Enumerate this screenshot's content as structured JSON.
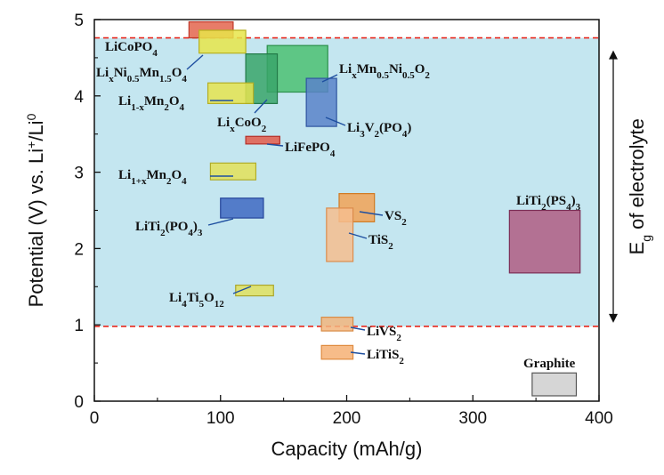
{
  "chart_data": {
    "type": "range-box",
    "xlabel": "Capacity (mAh/g)",
    "ylabel": {
      "main": "Potential (V) vs. Li",
      "sup1": "+",
      "mid": "/Li",
      "sup2": "0"
    },
    "xlim": [
      0,
      400
    ],
    "ylim": [
      0,
      5
    ],
    "xticks": [
      0,
      100,
      200,
      300,
      400
    ],
    "yticks": [
      0,
      1,
      2,
      3,
      4,
      5
    ],
    "minor_ticks": true,
    "grid": false,
    "electrolyte_window": {
      "lower_V": 0.98,
      "upper_V": 4.76,
      "fill_color": "#c4e6f0",
      "line_color": "#e8281e",
      "label": {
        "main": "E",
        "sub": "g",
        "rest": " of electrolyte"
      }
    },
    "materials": [
      {
        "id": "licopo4",
        "label": [
          [
            "LiCoPO",
            "n"
          ],
          [
            "4",
            "sub"
          ]
        ],
        "x": [
          75,
          110
        ],
        "y": [
          4.76,
          4.97
        ],
        "fill": "#e3654e",
        "edge": "#c0392b"
      },
      {
        "id": "lini05mn15o4",
        "label": [
          [
            "Li",
            "n"
          ],
          [
            "x",
            "sub"
          ],
          [
            "Ni",
            "n"
          ],
          [
            "0.5",
            "sub"
          ],
          [
            "Mn",
            "n"
          ],
          [
            "1.5",
            "sub"
          ],
          [
            "O",
            "n"
          ],
          [
            "4",
            "sub"
          ]
        ],
        "x": [
          83,
          120
        ],
        "y": [
          4.56,
          4.86
        ],
        "fill": "#e8e54a",
        "edge": "#b7b020"
      },
      {
        "id": "lixmn05ni05o2",
        "label": [
          [
            "Li",
            "n"
          ],
          [
            "x",
            "sub"
          ],
          [
            "Mn",
            "n"
          ],
          [
            "0.5",
            "sub"
          ],
          [
            "Ni",
            "n"
          ],
          [
            "0.5",
            "sub"
          ],
          [
            "O",
            "n"
          ],
          [
            "2",
            "sub"
          ]
        ],
        "x": [
          137,
          185
        ],
        "y": [
          4.05,
          4.66
        ],
        "fill": "#4cbf72",
        "edge": "#2b8f4a"
      },
      {
        "id": "lixcoo2",
        "label": [
          [
            "Li",
            "n"
          ],
          [
            "x",
            "sub"
          ],
          [
            "CoO",
            "n"
          ],
          [
            "2",
            "sub"
          ]
        ],
        "x": [
          120,
          145
        ],
        "y": [
          3.9,
          4.55
        ],
        "fill": "#3aa46a",
        "edge": "#237a48"
      },
      {
        "id": "li1xmn2o4",
        "label": [
          [
            "Li",
            "n"
          ],
          [
            "1-x",
            "sub"
          ],
          [
            "Mn",
            "n"
          ],
          [
            "2",
            "sub"
          ],
          [
            "O",
            "n"
          ],
          [
            "4",
            "sub"
          ]
        ],
        "x": [
          90,
          126
        ],
        "y": [
          3.9,
          4.17
        ],
        "fill": "#e6e34f",
        "edge": "#b4ae24"
      },
      {
        "id": "li3v2po43",
        "label": [
          [
            "Li",
            "n"
          ],
          [
            "3",
            "sub"
          ],
          [
            "V",
            "n"
          ],
          [
            "2",
            "sub"
          ],
          [
            "(PO",
            "n"
          ],
          [
            "4",
            "sub"
          ],
          [
            ")",
            "n"
          ]
        ],
        "x": [
          168,
          192
        ],
        "y": [
          3.6,
          4.23
        ],
        "fill": "#5b82c9",
        "edge": "#2f55a0"
      },
      {
        "id": "lifepo4",
        "label": [
          [
            "LiFePO",
            "n"
          ],
          [
            "4",
            "sub"
          ]
        ],
        "x": [
          120,
          147
        ],
        "y": [
          3.37,
          3.47
        ],
        "fill": "#e45a4a",
        "edge": "#b5302a"
      },
      {
        "id": "li1pxmn2o4",
        "label": [
          [
            "Li",
            "n"
          ],
          [
            "1+x",
            "sub"
          ],
          [
            "Mn",
            "n"
          ],
          [
            "2",
            "sub"
          ],
          [
            "O",
            "n"
          ],
          [
            "4",
            "sub"
          ]
        ],
        "x": [
          92,
          128
        ],
        "y": [
          2.9,
          3.12
        ],
        "fill": "#e4e158",
        "edge": "#b0ac28"
      },
      {
        "id": "liti2po43",
        "label": [
          [
            "LiTi",
            "n"
          ],
          [
            "2",
            "sub"
          ],
          [
            "(PO",
            "n"
          ],
          [
            "4",
            "sub"
          ],
          [
            ")",
            "n"
          ],
          [
            "3",
            "sub"
          ]
        ],
        "x": [
          100,
          134
        ],
        "y": [
          2.4,
          2.66
        ],
        "fill": "#3f68c2",
        "edge": "#24449a"
      },
      {
        "id": "vs2",
        "label": [
          [
            "VS",
            "n"
          ],
          [
            "2",
            "sub"
          ]
        ],
        "x": [
          194,
          222
        ],
        "y": [
          2.35,
          2.72
        ],
        "fill": "#f2a256",
        "edge": "#d07a22"
      },
      {
        "id": "tis2",
        "label": [
          [
            "TiS",
            "n"
          ],
          [
            "2",
            "sub"
          ]
        ],
        "x": [
          184,
          205
        ],
        "y": [
          1.83,
          2.53
        ],
        "fill": "#f6bd8e",
        "edge": "#dc8c4c"
      },
      {
        "id": "liti2ps43",
        "label": [
          [
            "LiTi",
            "n"
          ],
          [
            "2",
            "sub"
          ],
          [
            "(PS",
            "n"
          ],
          [
            "4",
            "sub"
          ],
          [
            ")",
            "n"
          ],
          [
            "3",
            "sub"
          ]
        ],
        "x": [
          329,
          385
        ],
        "y": [
          1.68,
          2.5
        ],
        "fill": "#b05c82",
        "edge": "#7c2e56"
      },
      {
        "id": "li4ti5o12",
        "label": [
          [
            "Li",
            "n"
          ],
          [
            "4",
            "sub"
          ],
          [
            "Ti",
            "n"
          ],
          [
            "5",
            "sub"
          ],
          [
            "O",
            "n"
          ],
          [
            "12",
            "sub"
          ]
        ],
        "x": [
          112,
          142
        ],
        "y": [
          1.38,
          1.52
        ],
        "fill": "#e2e05e",
        "edge": "#aaa62c"
      },
      {
        "id": "livs2",
        "label": [
          [
            "LiVS",
            "n"
          ],
          [
            "2",
            "sub"
          ]
        ],
        "x": [
          180,
          205
        ],
        "y": [
          0.92,
          1.1
        ],
        "fill": "#f2b57e",
        "edge": "#d88a44"
      },
      {
        "id": "litis2",
        "label": [
          [
            "LiTiS",
            "n"
          ],
          [
            "2",
            "sub"
          ]
        ],
        "x": [
          180,
          205
        ],
        "y": [
          0.55,
          0.73
        ],
        "fill": "#f6b074",
        "edge": "#df8a3e"
      },
      {
        "id": "graphite",
        "label": [
          [
            "Graphite",
            "n"
          ]
        ],
        "x": [
          347,
          382
        ],
        "y": [
          0.07,
          0.37
        ],
        "fill": "#cfcfcf",
        "edge": "#555555"
      }
    ]
  }
}
